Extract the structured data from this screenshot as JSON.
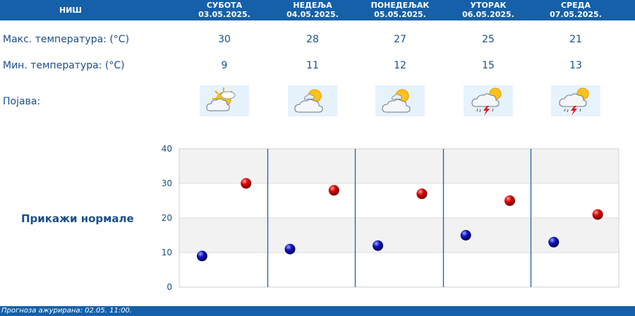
{
  "header": {
    "city": "НИШ",
    "days": [
      {
        "name": "СУБОТА",
        "date": "03.05.2025."
      },
      {
        "name": "НЕДЕЉА",
        "date": "04.05.2025."
      },
      {
        "name": "ПОНЕДЕЉАК",
        "date": "05.05.2025."
      },
      {
        "name": "УТОРАК",
        "date": "06.05.2025."
      },
      {
        "name": "СРЕДА",
        "date": "07.05.2025."
      }
    ]
  },
  "rows": {
    "max_label": "Макс. температура: (°C)",
    "min_label": "Мин. температура: (°C)",
    "phenomenon_label": "Појава:",
    "max": [
      "30",
      "28",
      "27",
      "25",
      "21"
    ],
    "min": [
      "9",
      "11",
      "12",
      "15",
      "13"
    ],
    "icons": [
      "sun-behind-cloud-icon",
      "sun-behind-clouds-icon",
      "sun-behind-clouds-icon",
      "thunderstorm-rain-icon",
      "thunderstorm-rain-icon"
    ]
  },
  "normals_link": "Прикажи нормале",
  "footer": "Прогноза ажурирана:  02.05.  11:00.",
  "colors": {
    "header_bg": "#1560a8",
    "text": "#1a4f86",
    "max_marker": "#cc0000",
    "min_marker": "#0a0aa8"
  },
  "chart_data": {
    "type": "scatter",
    "categories": [
      "03.05.2025.",
      "04.05.2025.",
      "05.05.2025.",
      "06.05.2025.",
      "07.05.2025."
    ],
    "series": [
      {
        "values": [
          9,
          11,
          12,
          15,
          13
        ]
      },
      {
        "values": [
          30,
          28,
          27,
          25,
          21
        ]
      }
    ],
    "ylim": [
      0,
      40
    ],
    "yticks": [
      "0",
      "10",
      "20",
      "30",
      "40"
    ],
    "grid": true
  }
}
